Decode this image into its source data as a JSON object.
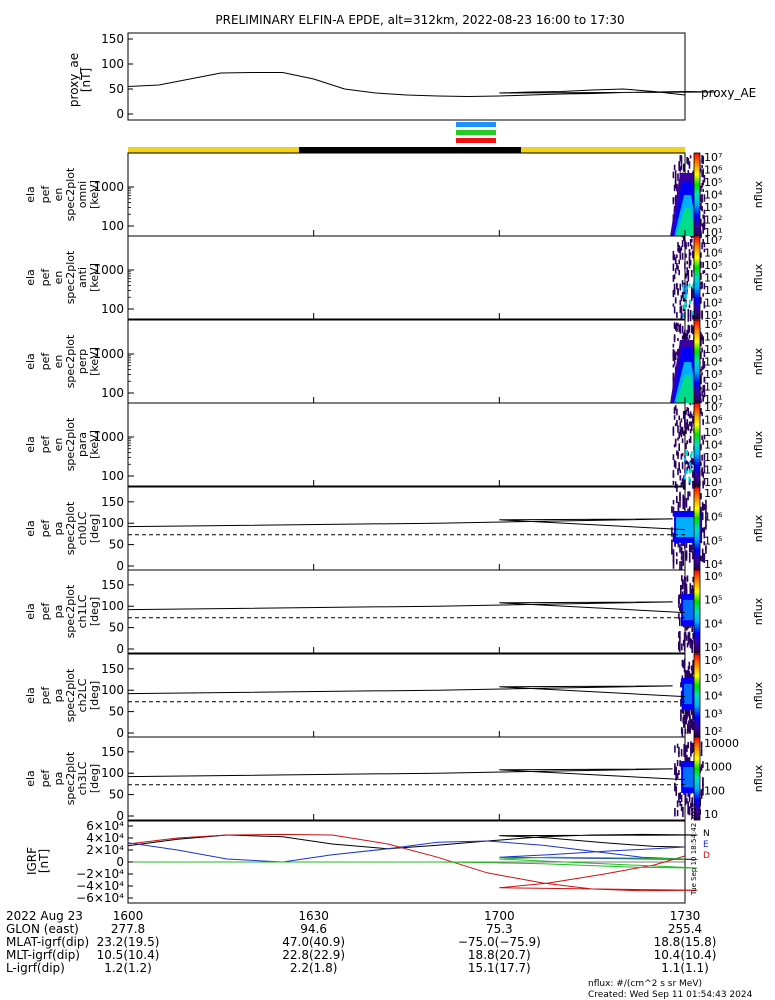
{
  "title": "PRELIMINARY ELFIN-A EPDE, alt=312km, 2022-08-23 16:00 to 17:30",
  "colors": {
    "frame": "#000000",
    "ae_line": "#000000",
    "sci_bar": "#1e90ff",
    "sci_bar2": "#22cc22",
    "sci_bar3": "#ee1111",
    "day_segment": "#f2d11a",
    "night_segment": "#000000",
    "igrf_N": "#000000",
    "igrf_E": "#1a33cc",
    "igrf_D": "#cc1111",
    "igrf_green": "#22bb22"
  },
  "ae_panel": {
    "ylabel": "proxy_ae",
    "yunit": "[nT]",
    "legend": "proxy_AE",
    "yticks": [
      "150",
      "100",
      "50",
      "0"
    ]
  },
  "spec_panels": [
    {
      "label": [
        "ela",
        "pef",
        "en",
        "spec2plot",
        "omni",
        "[keV]"
      ],
      "yticks": [
        "1000",
        "100"
      ],
      "cbar_ticks": [
        "10⁷",
        "10⁶",
        "10⁵",
        "10⁴",
        "10³",
        "10²",
        "10¹"
      ],
      "cbar_label": "nflux"
    },
    {
      "label": [
        "ela",
        "pef",
        "en",
        "spec2plot",
        "anti",
        "[keV]"
      ],
      "yticks": [
        "1000",
        "100"
      ],
      "cbar_ticks": [
        "10⁷",
        "10⁶",
        "10⁵",
        "10⁴",
        "10³",
        "10²",
        "10¹"
      ],
      "cbar_label": "nflux"
    },
    {
      "label": [
        "ela",
        "pef",
        "en",
        "spec2plot",
        "perp",
        "[keV]"
      ],
      "yticks": [
        "1000",
        "100"
      ],
      "cbar_ticks": [
        "10⁷",
        "10⁶",
        "10⁵",
        "10⁴",
        "10³",
        "10²",
        "10¹"
      ],
      "cbar_label": "nflux"
    },
    {
      "label": [
        "ela",
        "pef",
        "en",
        "spec2plot",
        "para",
        "[keV]"
      ],
      "yticks": [
        "1000",
        "100"
      ],
      "cbar_ticks": [
        "10⁷",
        "10⁶",
        "10⁵",
        "10⁴",
        "10³",
        "10²",
        "10¹"
      ],
      "cbar_label": "nflux"
    }
  ],
  "pa_panels": [
    {
      "label": [
        "ela",
        "pef",
        "pa",
        "spec2plot",
        "ch0LC",
        "[deg]"
      ],
      "yticks": [
        "150",
        "100",
        "50",
        "0"
      ],
      "cbar_ticks": [
        "10⁷",
        "10⁶",
        "10⁵",
        "10⁴"
      ],
      "cbar_label": "nflux"
    },
    {
      "label": [
        "ela",
        "pef",
        "pa",
        "spec2plot",
        "ch1LC",
        "[deg]"
      ],
      "yticks": [
        "150",
        "100",
        "50",
        "0"
      ],
      "cbar_ticks": [
        "10⁶",
        "10⁵",
        "10⁴",
        "10³"
      ],
      "cbar_label": "nflux"
    },
    {
      "label": [
        "ela",
        "pef",
        "pa",
        "spec2plot",
        "ch2LC",
        "[deg]"
      ],
      "yticks": [
        "150",
        "100",
        "50",
        "0"
      ],
      "cbar_ticks": [
        "10⁶",
        "10⁵",
        "10⁴",
        "10³",
        "10²"
      ],
      "cbar_label": "nflux"
    },
    {
      "label": [
        "ela",
        "pef",
        "pa",
        "spec2plot",
        "ch3LC",
        "[deg]"
      ],
      "yticks": [
        "150",
        "100",
        "50",
        "0"
      ],
      "cbar_ticks": [
        "10000",
        "1000",
        "100",
        "10"
      ],
      "cbar_label": "nflux"
    }
  ],
  "igrf_panel": {
    "ylabel": "IGRF",
    "yunit": "[nT]",
    "yticks": [
      "6×10⁴",
      "4×10⁴",
      "2×10⁴",
      "0",
      "−2×10⁴",
      "−4×10⁴",
      "−6×10⁴"
    ],
    "legend": [
      "N",
      "E",
      "D"
    ],
    "stamp": "Tue Sep 10 18:54:42 2024"
  },
  "footer": {
    "rows": [
      {
        "label": "2022 Aug 23",
        "values": [
          "1600",
          "1630",
          "1700",
          "1730"
        ]
      },
      {
        "label": "GLON (east)",
        "values": [
          "277.8",
          "94.6",
          "75.3",
          "255.4"
        ]
      },
      {
        "label": "MLAT-igrf(dip)",
        "values": [
          "23.2(19.5)",
          "47.0(40.9)",
          "−75.0(−75.9)",
          "18.8(15.8)"
        ]
      },
      {
        "label": "MLT-igrf(dip)",
        "values": [
          "10.5(10.4)",
          "22.8(22.9)",
          "18.8(20.7)",
          "10.4(10.4)"
        ]
      },
      {
        "label": "L-igrf(dip)",
        "values": [
          "1.2(1.2)",
          "2.2(1.8)",
          "15.1(17.7)",
          "1.1(1.1)"
        ]
      }
    ],
    "units_note": "nflux: #/(cm^2 s sr MeV)",
    "created": "Created: Wed Sep 11 01:54:43 2024"
  },
  "chart_data": [
    {
      "type": "line",
      "title": "PRELIMINARY ELFIN-A EPDE, alt=312km, 2022-08-23 16:00 to 17:30",
      "ylabel": "proxy_ae [nT]",
      "xlim": [
        1600,
        1730
      ],
      "ylim": [
        0,
        150
      ],
      "series": [
        {
          "name": "proxy_AE",
          "x": [
            1600,
            1605,
            1610,
            1615,
            1620,
            1625,
            1630,
            1635,
            1640,
            1645,
            1650,
            1655,
            1660,
            1665,
            1670,
            1675,
            1680,
            1685,
            1690,
            1695,
            1700,
            1705,
            1710,
            1715,
            1720,
            1725,
            1730
          ],
          "values": [
            55,
            58,
            70,
            82,
            83,
            83,
            70,
            50,
            42,
            38,
            36,
            35,
            36,
            38,
            40,
            41,
            43,
            44,
            45,
            44,
            42,
            44,
            45,
            48,
            50,
            45,
            38
          ]
        }
      ]
    },
    {
      "type": "heatmap",
      "panels": [
        "omni",
        "anti",
        "perp",
        "para"
      ],
      "ylabel": "energy [keV]",
      "ylog": true,
      "xlim": [
        1600,
        1730
      ],
      "burst_interval": [
        1688,
        1693
      ]
    },
    {
      "type": "heatmap",
      "panels": [
        "ch0LC",
        "ch1LC",
        "ch2LC",
        "ch3LC"
      ],
      "ylabel": "pitch angle [deg]",
      "ylim": [
        0,
        180
      ],
      "xlim": [
        1600,
        1730
      ],
      "loss_cone_solid": [
        [
          1600,
          92
        ],
        [
          1650,
          100
        ],
        [
          1688,
          110
        ],
        [
          1700,
          108
        ],
        [
          1730,
          85
        ]
      ],
      "loss_cone_dashed": [
        [
          1600,
          73
        ],
        [
          1730,
          73
        ]
      ]
    },
    {
      "type": "line",
      "ylabel": "IGRF [nT]",
      "xlim": [
        1600,
        1730
      ],
      "ylim": [
        -60000,
        60000
      ],
      "x": [
        1600,
        1608,
        1616,
        1625,
        1633,
        1642,
        1650,
        1658,
        1667,
        1675,
        1683,
        1692,
        1700,
        1708,
        1717,
        1725,
        1730
      ],
      "series": [
        {
          "name": "N",
          "values": [
            27000,
            38000,
            45000,
            42000,
            30000,
            22000,
            28000,
            35000,
            42000,
            45000,
            46000,
            45000,
            44000,
            40000,
            32000,
            26000,
            25000
          ]
        },
        {
          "name": "E",
          "values": [
            32000,
            20000,
            5000,
            0,
            12000,
            22000,
            33000,
            35000,
            28000,
            18000,
            8000,
            4000,
            8000,
            12000,
            18000,
            22000,
            25000
          ]
        },
        {
          "name": "D",
          "values": [
            30000,
            40000,
            45000,
            46000,
            45000,
            30000,
            8000,
            -18000,
            -35000,
            -45000,
            -48000,
            -47000,
            -43000,
            -35000,
            -20000,
            -5000,
            10000
          ]
        },
        {
          "values": [
            0,
            0,
            0,
            0,
            0,
            0,
            0,
            -1000,
            -3000,
            -6000,
            -9000,
            -10000,
            5000,
            8000,
            7000,
            6000,
            5000
          ]
        }
      ]
    }
  ]
}
